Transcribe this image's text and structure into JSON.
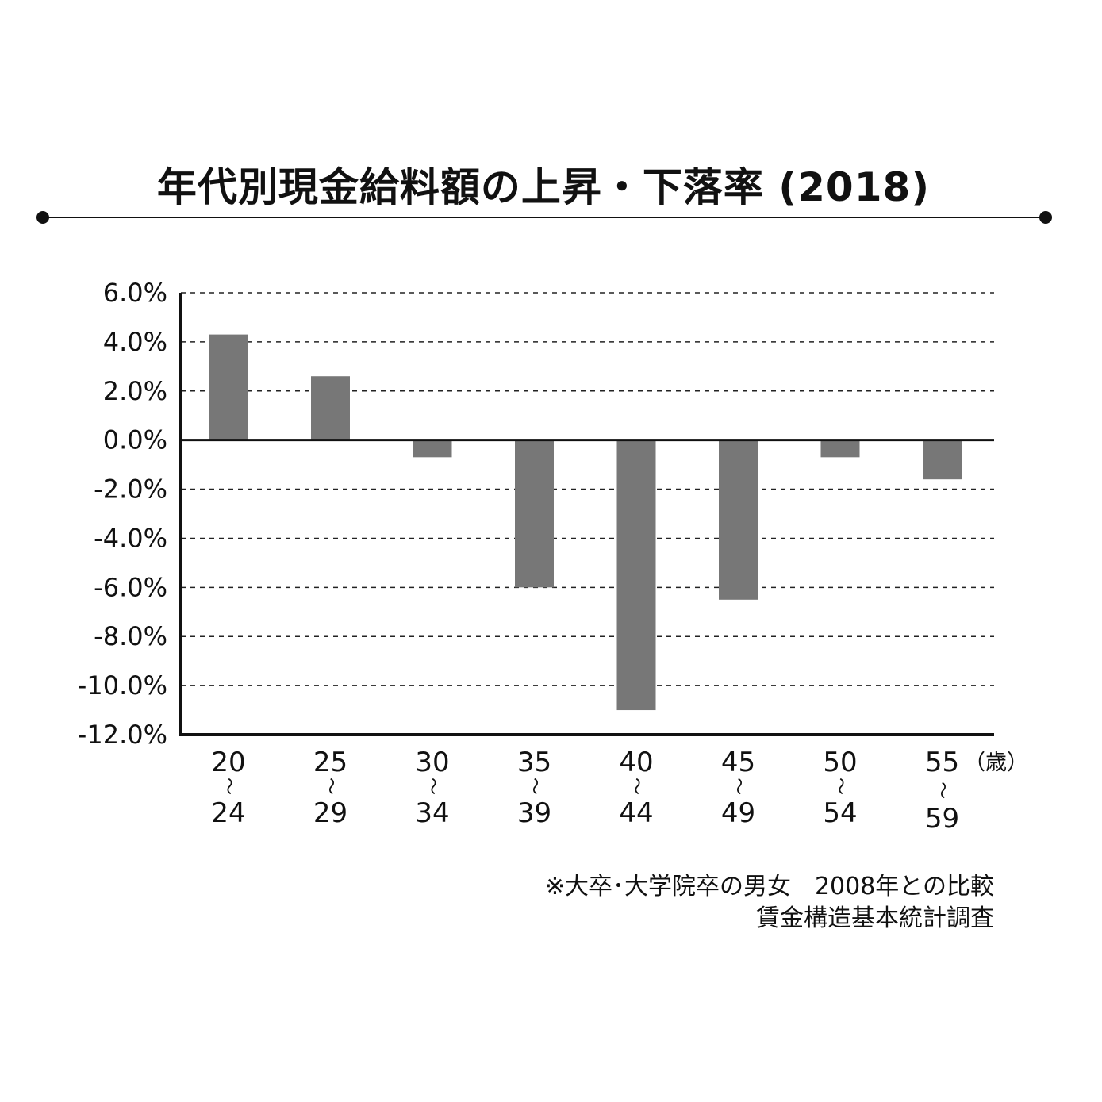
{
  "chart_data": {
    "type": "bar",
    "title": "年代別現金給料額の上昇・下落率 (2018)",
    "categories": [
      {
        "start": "20",
        "sep": "〜",
        "end": "24"
      },
      {
        "start": "25",
        "sep": "〜",
        "end": "29"
      },
      {
        "start": "30",
        "sep": "〜",
        "end": "34"
      },
      {
        "start": "35",
        "sep": "〜",
        "end": "39"
      },
      {
        "start": "40",
        "sep": "〜",
        "end": "44"
      },
      {
        "start": "45",
        "sep": "〜",
        "end": "49"
      },
      {
        "start": "50",
        "sep": "〜",
        "end": "54"
      },
      {
        "start": "55",
        "sep": "〜",
        "end": "59"
      }
    ],
    "values": [
      4.3,
      2.6,
      -0.7,
      -6.0,
      -11.0,
      -6.5,
      -0.7,
      -1.6
    ],
    "ylim": [
      -12,
      6
    ],
    "yticks": [
      "6.0%",
      "4.0%",
      "2.0%",
      "0.0%",
      "-2.0%",
      "-4.0%",
      "-6.0%",
      "-8.0%",
      "-10.0%",
      "-12.0%"
    ],
    "ytick_values": [
      6,
      4,
      2,
      0,
      -2,
      -4,
      -6,
      -8,
      -10,
      -12
    ],
    "x_unit": "（歳）",
    "grid": "horizontal-dashed",
    "bar_color": "#777777"
  },
  "notes": {
    "line1": "※大卒･大学院卒の男女　2008年との比較",
    "line2": "賃金構造基本統計調査"
  }
}
